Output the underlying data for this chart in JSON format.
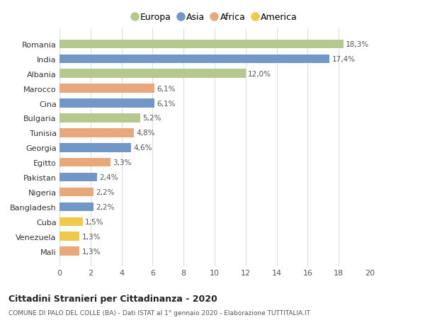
{
  "categories": [
    "Romania",
    "India",
    "Albania",
    "Marocco",
    "Cina",
    "Bulgaria",
    "Tunisia",
    "Georgia",
    "Egitto",
    "Pakistan",
    "Nigeria",
    "Bangladesh",
    "Cuba",
    "Venezuela",
    "Mali"
  ],
  "values": [
    18.3,
    17.4,
    12.0,
    6.1,
    6.1,
    5.2,
    4.8,
    4.6,
    3.3,
    2.4,
    2.2,
    2.2,
    1.5,
    1.3,
    1.3
  ],
  "labels": [
    "18,3%",
    "17,4%",
    "12,0%",
    "6,1%",
    "6,1%",
    "5,2%",
    "4,8%",
    "4,6%",
    "3,3%",
    "2,4%",
    "2,2%",
    "2,2%",
    "1,5%",
    "1,3%",
    "1,3%"
  ],
  "continents": [
    "Europa",
    "Asia",
    "Europa",
    "Africa",
    "Asia",
    "Europa",
    "Africa",
    "Asia",
    "Africa",
    "Asia",
    "Africa",
    "Asia",
    "America",
    "America",
    "Africa"
  ],
  "continent_colors": {
    "Europa": "#b5c98e",
    "Asia": "#7097c8",
    "Africa": "#e8a87c",
    "America": "#f0c84a"
  },
  "legend_order": [
    "Europa",
    "Asia",
    "Africa",
    "America"
  ],
  "xlim": [
    0,
    20
  ],
  "xticks": [
    0,
    2,
    4,
    6,
    8,
    10,
    12,
    14,
    16,
    18,
    20
  ],
  "title": "Cittadini Stranieri per Cittadinanza - 2020",
  "subtitle": "COMUNE DI PALO DEL COLLE (BA) - Dati ISTAT al 1° gennaio 2020 - Elaborazione TUTTITALIA.IT",
  "bg_color": "#ffffff",
  "grid_color": "#dddddd",
  "bar_height": 0.6
}
